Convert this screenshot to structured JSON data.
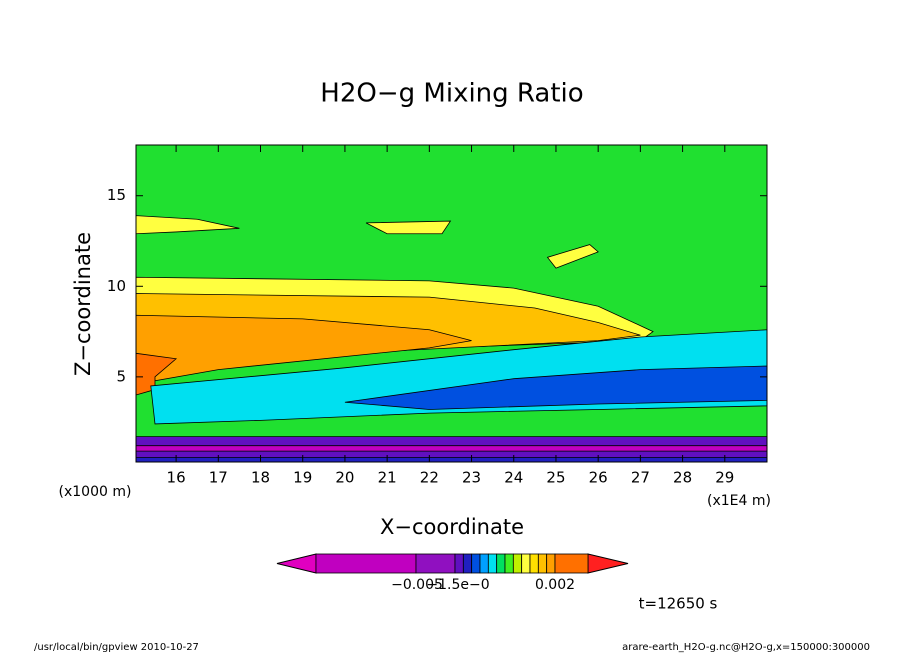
{
  "chart_data": {
    "type": "contour",
    "title": "H2O−g Mixing Ratio",
    "x_label": "X−coordinate",
    "y_label": "Z−coordinate",
    "x_unit": "(x1E4 m)",
    "y_unit": "(x1000 m)",
    "xlim": [
      15.05,
      30
    ],
    "xticks": [
      16,
      17,
      18,
      19,
      20,
      21,
      22,
      23,
      24,
      25,
      26,
      27,
      28,
      29
    ],
    "ylim": [
      0.3,
      17.8
    ],
    "yticks": [
      5,
      10,
      15
    ],
    "colorbar": {
      "colors": [
        "#e000c0",
        "#c000c0",
        "#9010c0",
        "#6010c0",
        "#2020c0",
        "#0050e0",
        "#00a0ff",
        "#00e0f0",
        "#00e060",
        "#40f020",
        "#c0f000",
        "#ffff40",
        "#ffe000",
        "#ffc000",
        "#ffa000",
        "#ff7000",
        "#ff2020"
      ],
      "tick_labels": [
        "−0.005",
        "−1.5e−0",
        "0.002"
      ]
    },
    "time_label": "t=12650 s",
    "footer_left": "/usr/local/bin/gpview  2010-10-27",
    "footer_right": "arare-earth_H2O-g.nc@H2O-g,x=150000:300000"
  }
}
